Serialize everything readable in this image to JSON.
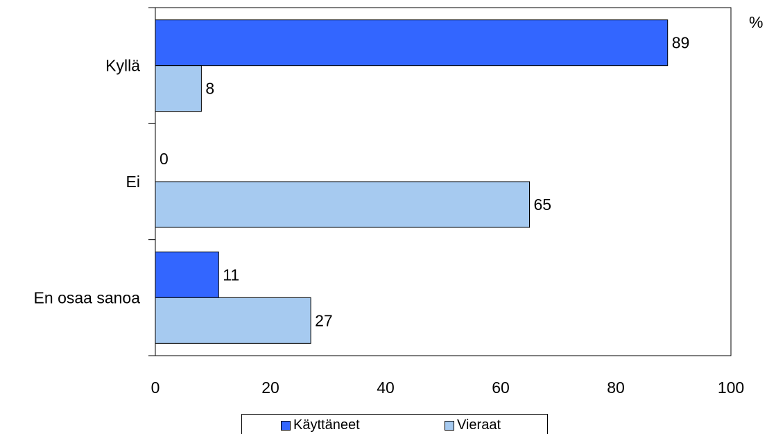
{
  "chart_data": {
    "type": "bar",
    "orientation": "horizontal",
    "categories": [
      "Kyllä",
      "Ei",
      "En osaa sanoa"
    ],
    "series": [
      {
        "name": "Käyttäneet",
        "values": [
          89,
          0,
          11
        ],
        "color": "#3366ff"
      },
      {
        "name": "Vieraat",
        "values": [
          8,
          65,
          27
        ],
        "color": "#a6caf0"
      }
    ],
    "xlim": [
      0,
      100
    ],
    "xticks": [
      0,
      20,
      40,
      60,
      80,
      100
    ],
    "unit_label": "%",
    "legend_position": "bottom",
    "grid": false
  }
}
